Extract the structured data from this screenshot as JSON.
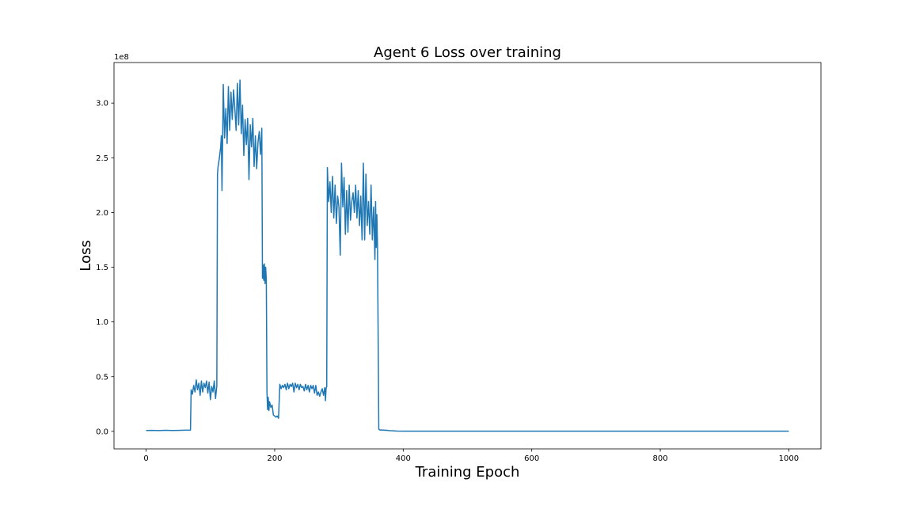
{
  "chart_data": {
    "type": "line",
    "title": "Agent 6 Loss over training",
    "xlabel": "Training Epoch",
    "ylabel": "Loss",
    "y_offset_text": "1e8",
    "xlim": [
      -50,
      1050
    ],
    "ylim": [
      -0.16,
      3.37
    ],
    "x_ticks": [
      {
        "value": 0,
        "label": "0"
      },
      {
        "value": 200,
        "label": "200"
      },
      {
        "value": 400,
        "label": "400"
      },
      {
        "value": 600,
        "label": "600"
      },
      {
        "value": 800,
        "label": "800"
      },
      {
        "value": 1000,
        "label": "1000"
      }
    ],
    "y_ticks": [
      {
        "value": 0.0,
        "label": "0.0"
      },
      {
        "value": 0.5,
        "label": "0.5"
      },
      {
        "value": 1.0,
        "label": "1.0"
      },
      {
        "value": 1.5,
        "label": "1.5"
      },
      {
        "value": 2.0,
        "label": "2.0"
      },
      {
        "value": 2.5,
        "label": "2.5"
      },
      {
        "value": 3.0,
        "label": "3.0"
      }
    ],
    "grid": false,
    "series": [
      {
        "color": "#1f77b4",
        "x": [
          0,
          10,
          20,
          30,
          40,
          50,
          60,
          69,
          70,
          72,
          74,
          76,
          78,
          80,
          82,
          84,
          86,
          88,
          90,
          92,
          94,
          96,
          98,
          100,
          102,
          104,
          106,
          108,
          110,
          111,
          112,
          114,
          116,
          117,
          118,
          119,
          120,
          122,
          124,
          126,
          128,
          130,
          132,
          134,
          136,
          138,
          140,
          142,
          144,
          146,
          148,
          150,
          152,
          154,
          156,
          158,
          160,
          162,
          164,
          166,
          168,
          170,
          172,
          174,
          176,
          178,
          180,
          181,
          182,
          183,
          184,
          185,
          186,
          187,
          188,
          189,
          190,
          191,
          192,
          194,
          196,
          198,
          200,
          202,
          204,
          206,
          208,
          210,
          212,
          214,
          216,
          218,
          220,
          222,
          224,
          226,
          228,
          230,
          232,
          234,
          236,
          238,
          240,
          242,
          244,
          246,
          248,
          250,
          252,
          254,
          256,
          258,
          260,
          262,
          264,
          266,
          268,
          270,
          272,
          274,
          276,
          278,
          279,
          280,
          281,
          282,
          284,
          286,
          288,
          290,
          292,
          294,
          296,
          298,
          300,
          302,
          304,
          306,
          308,
          310,
          312,
          314,
          316,
          318,
          320,
          322,
          324,
          326,
          328,
          330,
          332,
          334,
          336,
          338,
          340,
          342,
          344,
          346,
          348,
          350,
          352,
          354,
          356,
          357,
          358,
          359,
          360,
          362,
          364,
          366,
          368,
          370,
          372,
          374,
          376,
          378,
          380,
          385,
          390,
          400,
          450,
          500,
          600,
          700,
          800,
          900,
          1000
        ],
        "values": [
          0.008,
          0.009,
          0.007,
          0.01,
          0.008,
          0.009,
          0.011,
          0.012,
          0.38,
          0.34,
          0.42,
          0.36,
          0.47,
          0.38,
          0.44,
          0.33,
          0.46,
          0.36,
          0.44,
          0.4,
          0.46,
          0.35,
          0.45,
          0.29,
          0.41,
          0.36,
          0.46,
          0.3,
          0.42,
          2.35,
          2.42,
          2.5,
          2.6,
          2.7,
          2.2,
          2.65,
          3.17,
          2.68,
          2.95,
          2.63,
          3.15,
          2.75,
          3.1,
          2.85,
          3.12,
          2.95,
          2.75,
          3.18,
          2.8,
          3.21,
          2.72,
          2.98,
          2.52,
          2.85,
          2.62,
          2.86,
          2.3,
          2.8,
          2.6,
          2.86,
          2.42,
          2.7,
          2.4,
          2.64,
          2.74,
          2.53,
          2.77,
          1.4,
          1.52,
          1.38,
          1.53,
          1.35,
          1.5,
          1.38,
          0.36,
          0.2,
          0.31,
          0.19,
          0.27,
          0.22,
          0.24,
          0.15,
          0.14,
          0.13,
          0.14,
          0.12,
          0.43,
          0.39,
          0.42,
          0.4,
          0.43,
          0.38,
          0.44,
          0.39,
          0.43,
          0.41,
          0.44,
          0.36,
          0.44,
          0.4,
          0.43,
          0.38,
          0.43,
          0.4,
          0.41,
          0.37,
          0.43,
          0.38,
          0.42,
          0.36,
          0.42,
          0.39,
          0.42,
          0.35,
          0.42,
          0.33,
          0.36,
          0.32,
          0.36,
          0.39,
          0.33,
          0.4,
          0.28,
          0.39,
          0.41,
          2.41,
          2.1,
          2.28,
          2.0,
          2.33,
          1.95,
          2.25,
          1.9,
          2.15,
          2.05,
          1.61,
          2.45,
          2.05,
          2.32,
          1.8,
          2.2,
          1.82,
          2.25,
          1.93,
          2.1,
          2.18,
          2.0,
          2.25,
          1.95,
          2.2,
          1.88,
          2.15,
          1.75,
          2.45,
          1.75,
          2.35,
          1.88,
          2.1,
          1.8,
          2.25,
          1.75,
          2.05,
          1.57,
          2.1,
          1.68,
          1.98,
          1.7,
          0.02,
          0.012,
          0.014,
          0.01,
          0.013,
          0.009,
          0.011,
          0.008,
          0.007,
          0.006,
          0.005,
          0.003,
          0.002,
          0.002,
          0.002,
          0.002,
          0.002,
          0.002,
          0.002,
          0.002
        ]
      }
    ]
  }
}
